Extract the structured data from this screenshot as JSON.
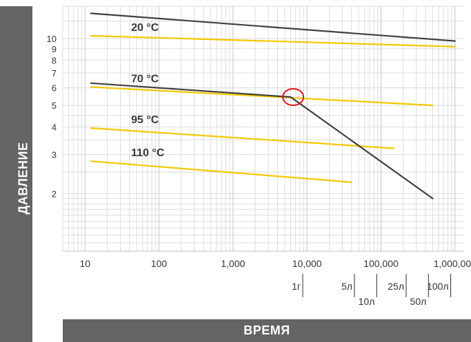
{
  "chart_data": {
    "type": "line",
    "x_scale": "log",
    "y_scale": "log",
    "xlim": [
      5,
      1300000
    ],
    "ylim": [
      1.1,
      14
    ],
    "grid": true,
    "xlabel": "ВРЕМЯ",
    "ylabel": "ДАВЛЕНИЕ",
    "x_ticks": [
      {
        "value": 10,
        "label": "10"
      },
      {
        "value": 100,
        "label": "100"
      },
      {
        "value": 1000,
        "label": "1,000"
      },
      {
        "value": 10000,
        "label": "10,000"
      },
      {
        "value": 100000,
        "label": "100,000"
      },
      {
        "value": 1000000,
        "label": "1,000,000"
      }
    ],
    "y_ticks": [
      {
        "value": 2,
        "label": "2"
      },
      {
        "value": 3,
        "label": "3"
      },
      {
        "value": 4,
        "label": "4"
      },
      {
        "value": 5,
        "label": "5"
      },
      {
        "value": 6,
        "label": "6"
      },
      {
        "value": 7,
        "label": "7"
      },
      {
        "value": 8,
        "label": "8"
      },
      {
        "value": 9,
        "label": "9"
      },
      {
        "value": 10,
        "label": "10"
      }
    ],
    "time_markers": [
      {
        "value": 8760,
        "label": "1г",
        "row": 1
      },
      {
        "value": 43800,
        "label": "5л",
        "row": 1
      },
      {
        "value": 87600,
        "label": "10л",
        "row": 2
      },
      {
        "value": 219000,
        "label": "25л",
        "row": 1
      },
      {
        "value": 438000,
        "label": "50л",
        "row": 2
      },
      {
        "value": 876000,
        "label": "100л",
        "row": 1
      }
    ],
    "series": [
      {
        "name": "20 °C",
        "color": "#f5c800",
        "points": [
          [
            12,
            10.3
          ],
          [
            1000000,
            9.2
          ]
        ]
      },
      {
        "name": "70 °C",
        "color": "#f5c800",
        "points": [
          [
            12,
            6.05
          ],
          [
            500000,
            5.0
          ]
        ]
      },
      {
        "name": "95 °C",
        "color": "#f5c800",
        "points": [
          [
            12,
            3.95
          ],
          [
            150000,
            3.2
          ]
        ]
      },
      {
        "name": "110 °C",
        "color": "#f5c800",
        "points": [
          [
            12,
            2.8
          ],
          [
            40000,
            2.25
          ]
        ]
      },
      {
        "color": "#404040",
        "points": [
          [
            12,
            13.0
          ],
          [
            1000000,
            9.75
          ]
        ]
      },
      {
        "color": "#404040",
        "points": [
          [
            12,
            6.3
          ],
          [
            6000,
            5.45
          ],
          [
            500000,
            1.9
          ]
        ]
      }
    ],
    "annotations": [
      {
        "type": "circle",
        "x": 6500,
        "y": 5.45,
        "color": "#e0161b"
      }
    ]
  }
}
